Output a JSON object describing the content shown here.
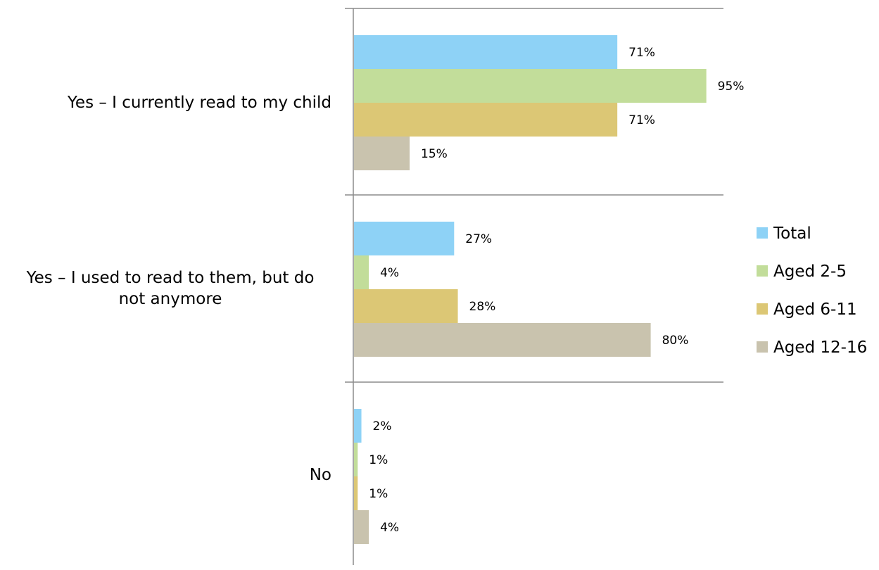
{
  "chart_data": {
    "type": "bar",
    "orientation": "horizontal",
    "title": "",
    "xlabel": "",
    "ylabel": "",
    "xlim": [
      0,
      100
    ],
    "grid": false,
    "legend_position": "right",
    "categories": [
      [
        "Yes – I currently read to my child"
      ],
      [
        "Yes – I used to read to them, but do",
        "not anymore"
      ],
      [
        "No"
      ]
    ],
    "series": [
      {
        "name": "Total",
        "color": "#8ED2F6",
        "values": [
          71,
          27,
          2
        ],
        "labels": [
          "71%",
          "27%",
          "2%"
        ]
      },
      {
        "name": "Aged 2-5",
        "color": "#C2DD9A",
        "values": [
          95,
          4,
          1
        ],
        "labels": [
          "95%",
          "4%",
          "1%"
        ]
      },
      {
        "name": "Aged 6-11",
        "color": "#DCC775",
        "values": [
          71,
          28,
          1
        ],
        "labels": [
          "71%",
          "28%",
          "1%"
        ]
      },
      {
        "name": "Aged 12-16",
        "color": "#C9C3AE",
        "values": [
          15,
          80,
          4
        ],
        "labels": [
          "15%",
          "80%",
          "4%"
        ]
      }
    ]
  }
}
